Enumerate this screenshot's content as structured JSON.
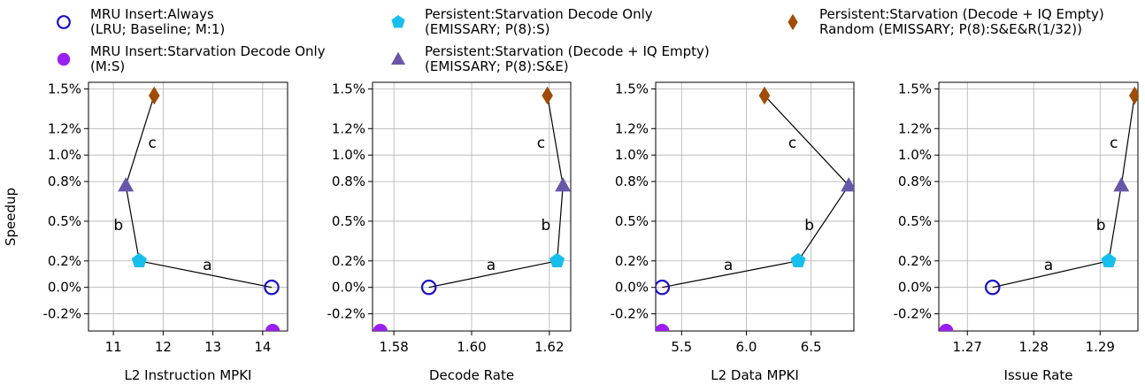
{
  "legend": [
    {
      "key": "mru_always",
      "line1": "MRU Insert:Always",
      "line2": "(LRU; Baseline; M:1)",
      "marker": "circle-open",
      "color": "#1a10c8"
    },
    {
      "key": "mru_starv",
      "line1": "MRU Insert:Starvation Decode Only",
      "line2": "(M:S)",
      "marker": "circle",
      "color": "#9b1ff0"
    },
    {
      "key": "pers_decode",
      "line1": "Persistent:Starvation Decode Only",
      "line2": "(EMISSARY; P(8):S)",
      "marker": "pentagon",
      "color": "#17bfee"
    },
    {
      "key": "pers_iq",
      "line1": "Persistent:Starvation (Decode + IQ Empty)",
      "line2": "(EMISSARY; P(8):S&E)",
      "marker": "triangle",
      "color": "#6a56a8"
    },
    {
      "key": "pers_rand",
      "line1": "Persistent:Starvation (Decode + IQ Empty)",
      "line2": "Random (EMISSARY; P(8):S&E&R(1/32))",
      "marker": "diamond",
      "color": "#a04c06"
    }
  ],
  "y_axis_label": "Speedup",
  "chart_data": [
    {
      "type": "scatter",
      "xlabel": "L2 Instruction MPKI",
      "ylabel": "Speedup",
      "xlim": [
        10.5,
        14.5
      ],
      "ylim": [
        -0.33,
        1.55
      ],
      "xticks": [
        {
          "v": 11,
          "label": "11"
        },
        {
          "v": 12,
          "label": "12"
        },
        {
          "v": 13,
          "label": "13"
        },
        {
          "v": 14,
          "label": "14"
        }
      ],
      "yticks": [
        {
          "v": -0.2,
          "label": "-0.2%"
        },
        {
          "v": 0.0,
          "label": "0.0%"
        },
        {
          "v": 0.2,
          "label": "0.2%"
        },
        {
          "v": 0.5,
          "label": "0.5%"
        },
        {
          "v": 0.8,
          "label": "0.8%"
        },
        {
          "v": 1.0,
          "label": "1.0%"
        },
        {
          "v": 1.2,
          "label": "1.2%"
        },
        {
          "v": 1.5,
          "label": "1.5%"
        }
      ],
      "grid": true,
      "points": {
        "mru_always": [
          14.18,
          0.0
        ],
        "mru_starv": [
          14.2,
          -0.33
        ],
        "pers_decode": [
          11.52,
          0.2
        ],
        "pers_iq": [
          11.25,
          0.77
        ],
        "pers_rand": [
          11.82,
          1.45
        ]
      },
      "segments": [
        {
          "from": "mru_always",
          "to": "pers_decode",
          "label": "a"
        },
        {
          "from": "pers_decode",
          "to": "pers_iq",
          "label": "b"
        },
        {
          "from": "pers_iq",
          "to": "pers_rand",
          "label": "c"
        }
      ]
    },
    {
      "type": "scatter",
      "xlabel": "Decode Rate",
      "ylabel": "",
      "xlim": [
        1.5745,
        1.6255
      ],
      "ylim": [
        -0.33,
        1.55
      ],
      "xticks": [
        {
          "v": 1.58,
          "label": "1.58"
        },
        {
          "v": 1.6,
          "label": "1.60"
        },
        {
          "v": 1.62,
          "label": "1.62"
        }
      ],
      "yticks": [
        {
          "v": -0.2,
          "label": "-0.2%"
        },
        {
          "v": 0.0,
          "label": "0.0%"
        },
        {
          "v": 0.2,
          "label": "0.2%"
        },
        {
          "v": 0.5,
          "label": "0.5%"
        },
        {
          "v": 0.8,
          "label": "0.8%"
        },
        {
          "v": 1.0,
          "label": "1.0%"
        },
        {
          "v": 1.2,
          "label": "1.2%"
        },
        {
          "v": 1.5,
          "label": "1.5%"
        }
      ],
      "grid": true,
      "points": {
        "mru_always": [
          1.589,
          0.0
        ],
        "mru_starv": [
          1.5765,
          -0.33
        ],
        "pers_decode": [
          1.622,
          0.2
        ],
        "pers_iq": [
          1.6235,
          0.77
        ],
        "pers_rand": [
          1.6195,
          1.45
        ]
      },
      "segments": [
        {
          "from": "mru_always",
          "to": "pers_decode",
          "label": "a"
        },
        {
          "from": "pers_decode",
          "to": "pers_iq",
          "label": "b"
        },
        {
          "from": "pers_iq",
          "to": "pers_rand",
          "label": "c"
        }
      ]
    },
    {
      "type": "scatter",
      "xlabel": "L2 Data MPKI",
      "ylabel": "",
      "xlim": [
        5.3,
        6.83
      ],
      "ylim": [
        -0.33,
        1.55
      ],
      "xticks": [
        {
          "v": 5.5,
          "label": "5.5"
        },
        {
          "v": 6.0,
          "label": "6.0"
        },
        {
          "v": 6.5,
          "label": "6.5"
        }
      ],
      "yticks": [
        {
          "v": -0.2,
          "label": "-0.2%"
        },
        {
          "v": 0.0,
          "label": "0.0%"
        },
        {
          "v": 0.2,
          "label": "0.2%"
        },
        {
          "v": 0.5,
          "label": "0.5%"
        },
        {
          "v": 0.8,
          "label": "0.8%"
        },
        {
          "v": 1.0,
          "label": "1.0%"
        },
        {
          "v": 1.2,
          "label": "1.2%"
        },
        {
          "v": 1.5,
          "label": "1.5%"
        }
      ],
      "grid": true,
      "points": {
        "mru_always": [
          5.35,
          0.0
        ],
        "mru_starv": [
          5.35,
          -0.33
        ],
        "pers_decode": [
          6.4,
          0.2
        ],
        "pers_iq": [
          6.79,
          0.77
        ],
        "pers_rand": [
          6.14,
          1.45
        ]
      },
      "segments": [
        {
          "from": "mru_always",
          "to": "pers_decode",
          "label": "a"
        },
        {
          "from": "pers_decode",
          "to": "pers_iq",
          "label": "b"
        },
        {
          "from": "pers_iq",
          "to": "pers_rand",
          "label": "c"
        }
      ]
    },
    {
      "type": "scatter",
      "xlabel": "Issue Rate",
      "ylabel": "",
      "xlim": [
        1.2657,
        1.2957
      ],
      "ylim": [
        -0.33,
        1.55
      ],
      "xticks": [
        {
          "v": 1.27,
          "label": "1.27"
        },
        {
          "v": 1.28,
          "label": "1.28"
        },
        {
          "v": 1.29,
          "label": "1.29"
        }
      ],
      "yticks": [
        {
          "v": -0.2,
          "label": "-0.2%"
        },
        {
          "v": 0.0,
          "label": "0.0%"
        },
        {
          "v": 0.2,
          "label": "0.2%"
        },
        {
          "v": 0.5,
          "label": "0.5%"
        },
        {
          "v": 0.8,
          "label": "0.8%"
        },
        {
          "v": 1.0,
          "label": "1.0%"
        },
        {
          "v": 1.2,
          "label": "1.2%"
        },
        {
          "v": 1.5,
          "label": "1.5%"
        }
      ],
      "grid": true,
      "points": {
        "mru_always": [
          1.2738,
          0.0
        ],
        "mru_starv": [
          1.2668,
          -0.33
        ],
        "pers_decode": [
          1.2913,
          0.2
        ],
        "pers_iq": [
          1.2932,
          0.77
        ],
        "pers_rand": [
          1.2952,
          1.45
        ]
      },
      "segments": [
        {
          "from": "mru_always",
          "to": "pers_decode",
          "label": "a"
        },
        {
          "from": "pers_decode",
          "to": "pers_iq",
          "label": "b"
        },
        {
          "from": "pers_iq",
          "to": "pers_rand",
          "label": "c"
        }
      ]
    }
  ]
}
